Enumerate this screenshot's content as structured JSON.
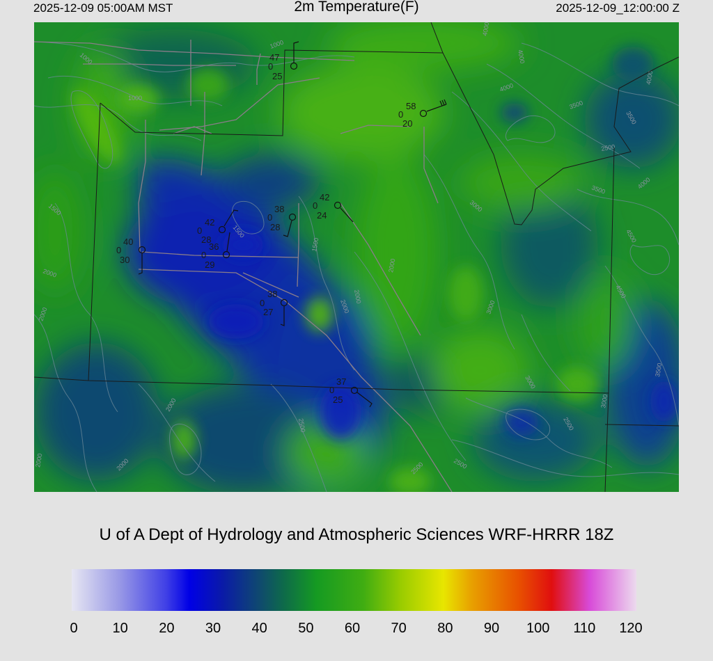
{
  "header": {
    "local_time": "2025-12-09 05:00AM MST",
    "title": "2m Temperature(F)",
    "valid_time": "2025-12-09_12:00:00 Z"
  },
  "map": {
    "field": "2m Temperature (F)",
    "contour_labels": [
      "1000",
      "1000",
      "1000",
      "1500",
      "1500",
      "1500",
      "2000",
      "2000",
      "2000",
      "2000",
      "2000",
      "2000",
      "2000",
      "2000",
      "2500",
      "2500",
      "2500",
      "2500",
      "2500",
      "3000",
      "3000",
      "3000",
      "3000",
      "3500",
      "3500",
      "3500",
      "3500",
      "4000",
      "4000",
      "4000",
      "4000",
      "4000",
      "4500",
      "4500"
    ],
    "stations": [
      {
        "id": "s1",
        "temp": "47",
        "wind": "0",
        "dew": "25"
      },
      {
        "id": "s2",
        "temp": "58",
        "wind": "0",
        "dew": "20"
      },
      {
        "id": "s3",
        "temp": "42",
        "wind": "0",
        "dew": "24"
      },
      {
        "id": "s4",
        "temp": "38",
        "wind": "0",
        "dew": "28"
      },
      {
        "id": "s5",
        "temp": "42",
        "wind": "0",
        "dew": "28"
      },
      {
        "id": "s6",
        "temp": "36",
        "wind": "0",
        "dew": "29"
      },
      {
        "id": "s7",
        "temp": "40",
        "wind": "0",
        "dew": "30"
      },
      {
        "id": "s8",
        "temp": "38",
        "wind": "0",
        "dew": "27"
      },
      {
        "id": "s9",
        "temp": "37",
        "wind": "0",
        "dew": "25"
      }
    ]
  },
  "credit": "U of A Dept of Hydrology and Atmospheric Sciences WRF-HRRR 18Z",
  "colorbar": {
    "min": 0,
    "max": 120,
    "tick_labels": [
      "0",
      "10",
      "20",
      "30",
      "40",
      "50",
      "60",
      "70",
      "80",
      "90",
      "100",
      "110",
      "120"
    ],
    "stops": [
      {
        "v": 0,
        "c": "#e6e6f2"
      },
      {
        "v": 10,
        "c": "#9a9ae6"
      },
      {
        "v": 20,
        "c": "#4040e6"
      },
      {
        "v": 25,
        "c": "#0000e6"
      },
      {
        "v": 32,
        "c": "#0a1aa8"
      },
      {
        "v": 40,
        "c": "#0f4a6e"
      },
      {
        "v": 45,
        "c": "#0e6a4a"
      },
      {
        "v": 52,
        "c": "#159a22"
      },
      {
        "v": 62,
        "c": "#40ad12"
      },
      {
        "v": 70,
        "c": "#9acc00"
      },
      {
        "v": 79,
        "c": "#e8e600"
      },
      {
        "v": 85,
        "c": "#e8a000"
      },
      {
        "v": 95,
        "c": "#e85000"
      },
      {
        "v": 102,
        "c": "#e00f0f"
      },
      {
        "v": 110,
        "c": "#d84ad8"
      },
      {
        "v": 120,
        "c": "#ecdaee"
      }
    ]
  }
}
